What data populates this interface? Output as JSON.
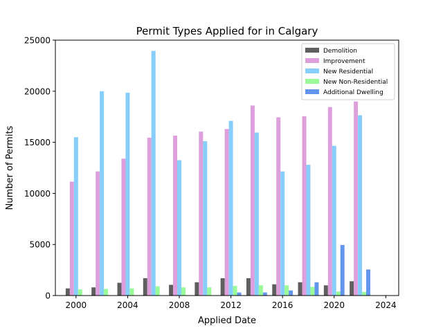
{
  "chart_data": {
    "type": "bar",
    "title": "Permit Types Applied for in Calgary",
    "xlabel": "Applied Date",
    "ylabel": "Number of Permits",
    "xlim": [
      1998.4,
      2025.0
    ],
    "ylim": [
      0,
      25000
    ],
    "xticks": [
      2000,
      2004,
      2008,
      2012,
      2016,
      2020,
      2024
    ],
    "yticks": [
      0,
      5000,
      10000,
      15000,
      20000,
      25000
    ],
    "grid": false,
    "legend_position": "top-right",
    "x": [
      2000,
      2002,
      2004,
      2006,
      2008,
      2010,
      2012,
      2014,
      2016,
      2018,
      2020,
      2022
    ],
    "series": [
      {
        "name": "Demolition",
        "color": "#5f5f5f",
        "values": [
          700,
          800,
          1250,
          1700,
          1050,
          1300,
          1700,
          1700,
          1100,
          1300,
          1000,
          1400
        ]
      },
      {
        "name": "Improvement",
        "color": "#dda0dd",
        "values": [
          11150,
          12150,
          13400,
          15450,
          15650,
          16050,
          16300,
          18600,
          17450,
          17550,
          18450,
          19000
        ]
      },
      {
        "name": "New Residential",
        "color": "#87cefa",
        "values": [
          15500,
          20000,
          19850,
          23950,
          13250,
          15100,
          17100,
          15950,
          12150,
          12800,
          14650,
          17650
        ]
      },
      {
        "name": "New Non-Residential",
        "color": "#98fb98",
        "values": [
          600,
          650,
          700,
          900,
          800,
          800,
          950,
          1000,
          1000,
          850,
          400,
          350
        ]
      },
      {
        "name": "Additional Dwelling",
        "color": "#6495ed",
        "values": [
          0,
          0,
          0,
          0,
          0,
          0,
          300,
          300,
          500,
          1300,
          4950,
          2550
        ]
      }
    ]
  }
}
